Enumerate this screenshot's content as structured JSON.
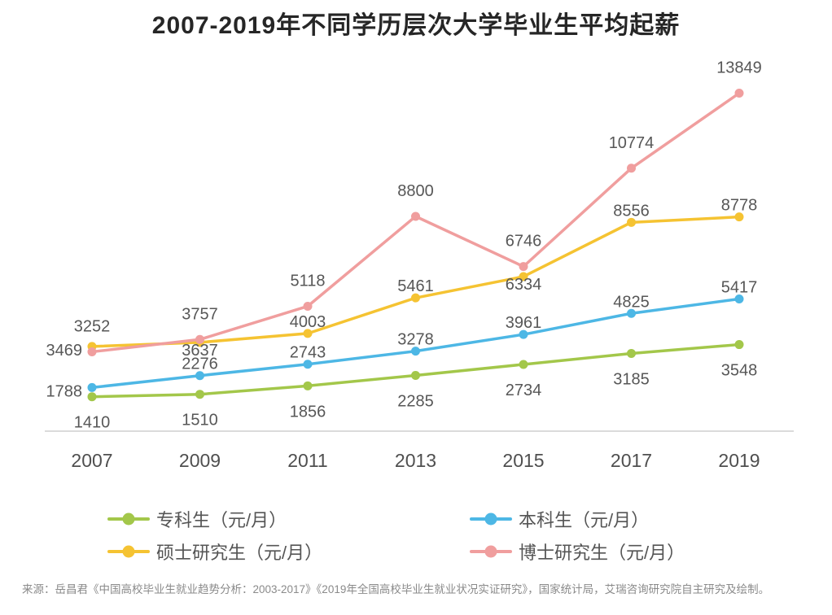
{
  "title": "2007-2019年不同学历层次大学毕业生平均起薪",
  "chart_data": {
    "type": "line",
    "title": "2007-2019年不同学历层次大学毕业生平均起薪",
    "categories": [
      "2007",
      "2009",
      "2011",
      "2013",
      "2015",
      "2017",
      "2019"
    ],
    "series": [
      {
        "name": "专科生（元/月）",
        "color": "#a3c74a",
        "values": [
          1410,
          1510,
          1856,
          2285,
          2734,
          3185,
          3548
        ]
      },
      {
        "name": "本科生（元/月）",
        "color": "#4db7e5",
        "values": [
          1788,
          2276,
          2743,
          3278,
          3961,
          4825,
          5417
        ]
      },
      {
        "name": "硕士研究生（元/月）",
        "color": "#f5c332",
        "values": [
          3469,
          3637,
          4003,
          5461,
          6334,
          8556,
          8778
        ]
      },
      {
        "name": "博士研究生（元/月）",
        "color": "#f09e9e",
        "values": [
          3252,
          3757,
          5118,
          8800,
          6746,
          10774,
          13849
        ]
      }
    ],
    "xlabel": "",
    "ylabel": "",
    "ylim": [
      0,
      14600
    ],
    "grid": false,
    "legend_position": "bottom",
    "axis_color": "#cfcfcf"
  },
  "source": "来源：岳昌君《中国高校毕业生就业趋势分析：2003-2017》《2019年全国高校毕业生就业状况实证研究》，国家统计局，艾瑞咨询研究院自主研究及绘制。"
}
